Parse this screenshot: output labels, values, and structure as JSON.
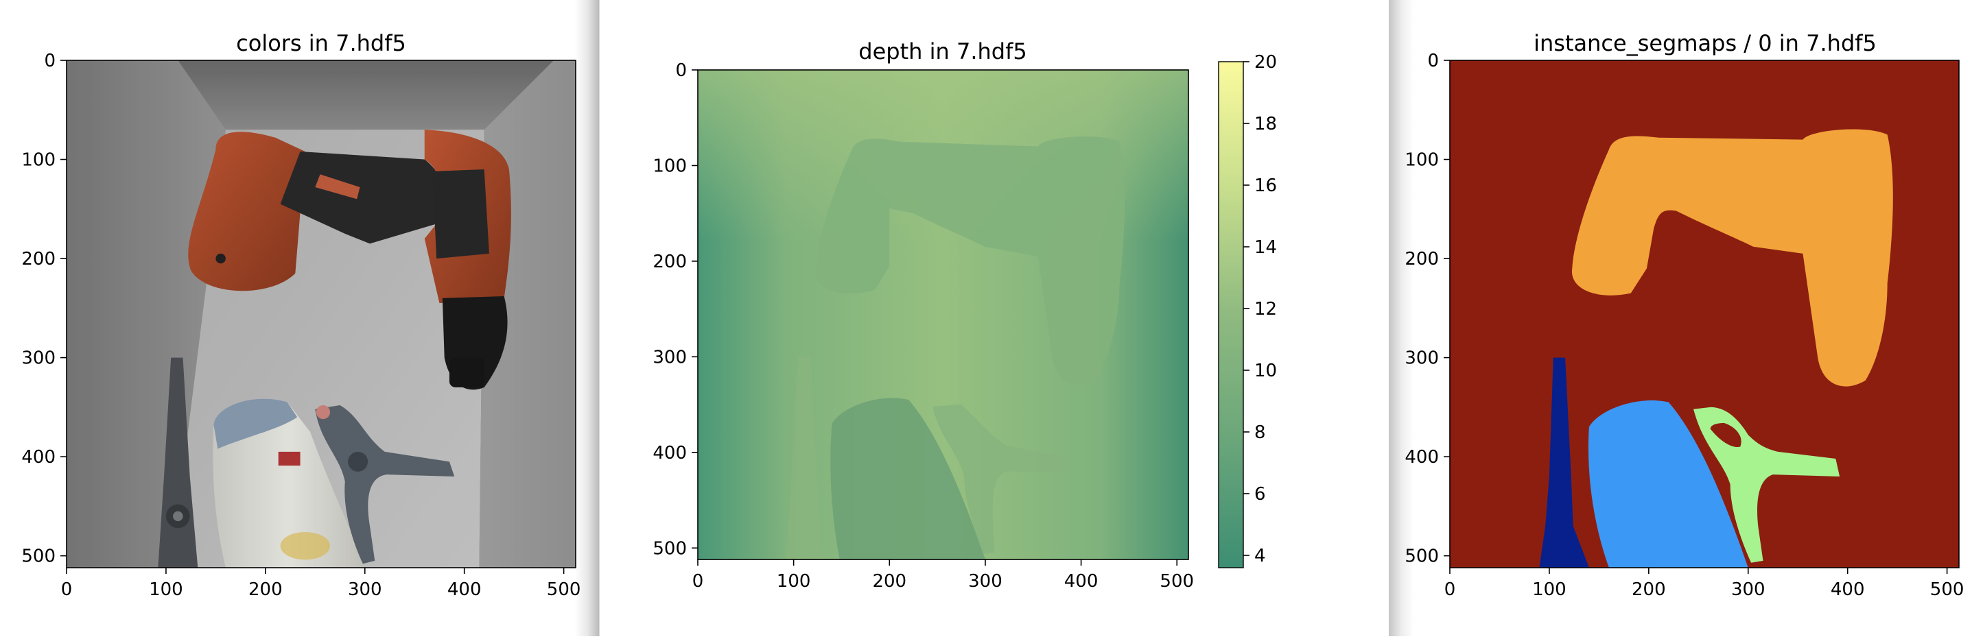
{
  "panels": [
    {
      "title": "colors in 7.hdf5",
      "type": "image",
      "xticks": [
        "0",
        "100",
        "200",
        "300",
        "400",
        "500"
      ],
      "yticks": [
        "0",
        "100",
        "200",
        "300",
        "400",
        "500"
      ]
    },
    {
      "title": "depth in 7.hdf5",
      "type": "heatmap",
      "xticks": [
        "0",
        "100",
        "200",
        "300",
        "400",
        "500"
      ],
      "yticks": [
        "0",
        "100",
        "200",
        "300",
        "400",
        "500"
      ],
      "colorbar": {
        "ticks": [
          "4",
          "6",
          "8",
          "10",
          "12",
          "14",
          "16",
          "18",
          "20"
        ],
        "range": [
          3.6,
          20
        ],
        "colormap": "summer-like green to pale yellow"
      }
    },
    {
      "title": "instance_segmaps / 0 in 7.hdf5",
      "type": "segmentation",
      "xticks": [
        "0",
        "100",
        "200",
        "300",
        "400",
        "500"
      ],
      "yticks": [
        "0",
        "100",
        "200",
        "300",
        "400",
        "500"
      ],
      "colors": {
        "background": "#8c1e10",
        "drill": "#f2a33a",
        "bottle": "#3c98f5",
        "clamp": "#a7f38f",
        "scissors": "#07208c"
      }
    }
  ],
  "chart_data": [
    {
      "type": "heatmap",
      "title": "colors in 7.hdf5",
      "xlim": [
        0,
        512
      ],
      "ylim": [
        512,
        0
      ],
      "x_ticks": [
        0,
        100,
        200,
        300,
        400,
        500
      ],
      "y_ticks": [
        0,
        100,
        200,
        300,
        400,
        500
      ]
    },
    {
      "type": "heatmap",
      "title": "depth in 7.hdf5",
      "xlim": [
        0,
        512
      ],
      "ylim": [
        512,
        0
      ],
      "x_ticks": [
        0,
        100,
        200,
        300,
        400,
        500
      ],
      "y_ticks": [
        0,
        100,
        200,
        300,
        400,
        500
      ],
      "colorbar_range": [
        3.6,
        20
      ],
      "colorbar_ticks": [
        4,
        6,
        8,
        10,
        12,
        14,
        16,
        18,
        20
      ]
    },
    {
      "type": "heatmap",
      "title": "instance_segmaps / 0 in 7.hdf5",
      "xlim": [
        0,
        512
      ],
      "ylim": [
        512,
        0
      ],
      "x_ticks": [
        0,
        100,
        200,
        300,
        400,
        500
      ],
      "y_ticks": [
        0,
        100,
        200,
        300,
        400,
        500
      ]
    }
  ]
}
